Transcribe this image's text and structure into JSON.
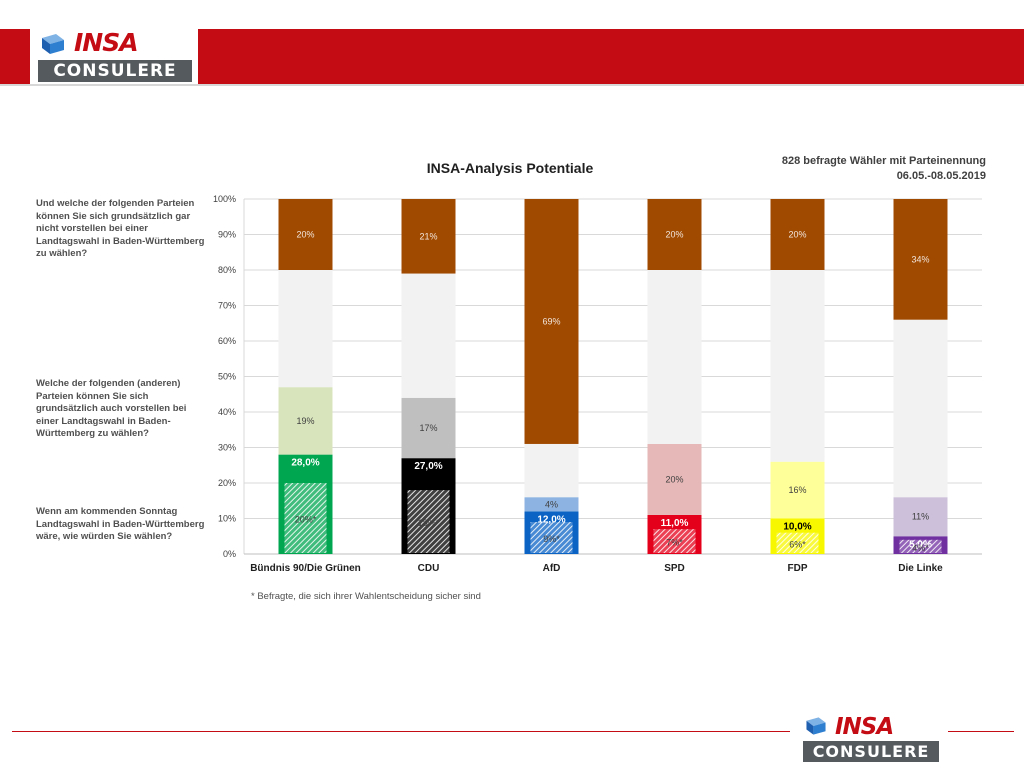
{
  "header": {
    "logo_top": "INSA",
    "logo_bottom": "CONSULERE"
  },
  "footer": {
    "logo_top": "INSA",
    "logo_bottom": "CONSULERE"
  },
  "chart_title": "INSA-Analysis Potentiale",
  "sample_note": "828 befragte Wähler mit Parteinennung",
  "date_range": "06.05.-08.05.2019",
  "questions": {
    "never": "Und welche der folgenden Parteien können Sie sich grundsätzlich gar nicht vorstellen bei einer Landtagswahl in Baden-Württemberg zu wählen?",
    "potential": "Welche der folgenden (anderen) Parteien können Sie sich grundsätzlich auch vorstellen bei einer Landtagswahl in Baden-Württemberg zu wählen?",
    "vote": "Wenn am kommenden Sonntag Landtagswahl in Baden-Württemberg wäre, wie würden Sie wählen?"
  },
  "footnote": "* Befragte, die sich ihrer Wahlentscheidung sicher sind",
  "colors": {
    "never": "#a04a00",
    "rest": "#f2f2f2",
    "brand_red": "#c40c14"
  },
  "chart_data": {
    "type": "bar",
    "stacked": true,
    "categories": [
      "Bündnis 90/Die Grünen",
      "CDU",
      "AfD",
      "SPD",
      "FDP",
      "Die Linke"
    ],
    "ylim": [
      0,
      100
    ],
    "y_ticks": [
      "0%",
      "10%",
      "20%",
      "30%",
      "40%",
      "50%",
      "60%",
      "70%",
      "80%",
      "90%",
      "100%"
    ],
    "grid": true,
    "series": [
      {
        "key": "sure",
        "values": [
          20,
          18,
          9,
          7,
          6,
          4
        ],
        "labels": [
          "20%*",
          "18%*",
          "9%*",
          "7%*",
          "6%*",
          "4%*"
        ]
      },
      {
        "key": "vote",
        "values": [
          28.0,
          27.0,
          12.0,
          11.0,
          10.0,
          5.0
        ],
        "labels": [
          "28,0%",
          "27,0%",
          "12,0%",
          "11,0%",
          "10,0%",
          "5,0%"
        ]
      },
      {
        "key": "potential",
        "values": [
          19,
          17,
          4,
          20,
          16,
          11
        ],
        "labels": [
          "19%",
          "17%",
          "4%",
          "20%",
          "16%",
          "11%"
        ]
      },
      {
        "key": "never",
        "values": [
          20,
          21,
          69,
          20,
          20,
          34
        ],
        "labels": [
          "20%",
          "21%",
          "69%",
          "20%",
          "20%",
          "34%"
        ]
      }
    ],
    "party_colors": [
      "#00a650",
      "#000000",
      "#0b63c4",
      "#e4001b",
      "#f7f700",
      "#7030a0"
    ],
    "potential_colors": [
      "#d8e4bc",
      "#bfbfbf",
      "#8db3e2",
      "#e6b8b7",
      "#ffff99",
      "#ccc0da"
    ],
    "vote_label_colors": [
      "#ffffff",
      "#ffffff",
      "#ffffff",
      "#ffffff",
      "#000000",
      "#ffffff"
    ]
  }
}
